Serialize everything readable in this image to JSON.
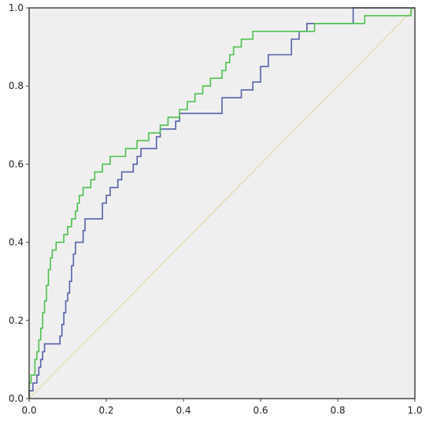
{
  "chart_data": {
    "type": "line",
    "title": "",
    "xlabel": "",
    "ylabel": "",
    "xlim": [
      0,
      1
    ],
    "ylim": [
      0,
      1
    ],
    "grid": false,
    "x_ticks": [
      "0.0",
      "0.2",
      "0.4",
      "0.6",
      "0.8",
      "1.0"
    ],
    "y_ticks": [
      "0.0",
      "0.2",
      "0.4",
      "0.6",
      "0.8",
      "1.0"
    ],
    "colors": {
      "plot_background": "#efefef",
      "frame": "#444444",
      "reference_line": "#e3d9a8",
      "series_blue": "#5560a8",
      "series_green": "#4dc14d"
    },
    "series": [
      {
        "color": "#5560a8",
        "points": [
          [
            0,
            0
          ],
          [
            0,
            0.02
          ],
          [
            0.01,
            0.02
          ],
          [
            0.01,
            0.04
          ],
          [
            0.02,
            0.04
          ],
          [
            0.02,
            0.06
          ],
          [
            0.025,
            0.06
          ],
          [
            0.025,
            0.08
          ],
          [
            0.03,
            0.08
          ],
          [
            0.03,
            0.1
          ],
          [
            0.035,
            0.1
          ],
          [
            0.035,
            0.12
          ],
          [
            0.04,
            0.12
          ],
          [
            0.04,
            0.14
          ],
          [
            0.08,
            0.14
          ],
          [
            0.08,
            0.16
          ],
          [
            0.085,
            0.16
          ],
          [
            0.085,
            0.19
          ],
          [
            0.09,
            0.19
          ],
          [
            0.09,
            0.22
          ],
          [
            0.095,
            0.22
          ],
          [
            0.095,
            0.25
          ],
          [
            0.1,
            0.25
          ],
          [
            0.1,
            0.27
          ],
          [
            0.105,
            0.27
          ],
          [
            0.105,
            0.3
          ],
          [
            0.11,
            0.3
          ],
          [
            0.11,
            0.34
          ],
          [
            0.115,
            0.34
          ],
          [
            0.115,
            0.37
          ],
          [
            0.12,
            0.37
          ],
          [
            0.12,
            0.4
          ],
          [
            0.14,
            0.4
          ],
          [
            0.14,
            0.43
          ],
          [
            0.145,
            0.43
          ],
          [
            0.145,
            0.46
          ],
          [
            0.19,
            0.46
          ],
          [
            0.19,
            0.5
          ],
          [
            0.2,
            0.5
          ],
          [
            0.2,
            0.52
          ],
          [
            0.21,
            0.52
          ],
          [
            0.21,
            0.54
          ],
          [
            0.23,
            0.54
          ],
          [
            0.23,
            0.56
          ],
          [
            0.24,
            0.56
          ],
          [
            0.24,
            0.58
          ],
          [
            0.27,
            0.58
          ],
          [
            0.27,
            0.6
          ],
          [
            0.28,
            0.6
          ],
          [
            0.28,
            0.62
          ],
          [
            0.29,
            0.62
          ],
          [
            0.29,
            0.64
          ],
          [
            0.33,
            0.64
          ],
          [
            0.33,
            0.67
          ],
          [
            0.34,
            0.67
          ],
          [
            0.34,
            0.69
          ],
          [
            0.38,
            0.69
          ],
          [
            0.38,
            0.71
          ],
          [
            0.39,
            0.71
          ],
          [
            0.39,
            0.73
          ],
          [
            0.5,
            0.73
          ],
          [
            0.5,
            0.77
          ],
          [
            0.55,
            0.77
          ],
          [
            0.55,
            0.79
          ],
          [
            0.58,
            0.79
          ],
          [
            0.58,
            0.81
          ],
          [
            0.6,
            0.81
          ],
          [
            0.6,
            0.85
          ],
          [
            0.62,
            0.85
          ],
          [
            0.62,
            0.88
          ],
          [
            0.68,
            0.88
          ],
          [
            0.68,
            0.92
          ],
          [
            0.7,
            0.92
          ],
          [
            0.7,
            0.94
          ],
          [
            0.72,
            0.94
          ],
          [
            0.72,
            0.96
          ],
          [
            0.84,
            0.96
          ],
          [
            0.84,
            1
          ],
          [
            1,
            1
          ]
        ]
      },
      {
        "color": "#4dc14d",
        "points": [
          [
            0,
            0
          ],
          [
            0,
            0.04
          ],
          [
            0.005,
            0.04
          ],
          [
            0.005,
            0.06
          ],
          [
            0.015,
            0.06
          ],
          [
            0.015,
            0.1
          ],
          [
            0.02,
            0.1
          ],
          [
            0.02,
            0.12
          ],
          [
            0.025,
            0.12
          ],
          [
            0.025,
            0.15
          ],
          [
            0.03,
            0.15
          ],
          [
            0.03,
            0.18
          ],
          [
            0.035,
            0.18
          ],
          [
            0.035,
            0.22
          ],
          [
            0.04,
            0.22
          ],
          [
            0.04,
            0.25
          ],
          [
            0.045,
            0.25
          ],
          [
            0.045,
            0.29
          ],
          [
            0.05,
            0.29
          ],
          [
            0.05,
            0.33
          ],
          [
            0.055,
            0.33
          ],
          [
            0.055,
            0.36
          ],
          [
            0.06,
            0.36
          ],
          [
            0.06,
            0.38
          ],
          [
            0.07,
            0.38
          ],
          [
            0.07,
            0.4
          ],
          [
            0.09,
            0.4
          ],
          [
            0.09,
            0.42
          ],
          [
            0.1,
            0.42
          ],
          [
            0.1,
            0.44
          ],
          [
            0.11,
            0.44
          ],
          [
            0.11,
            0.46
          ],
          [
            0.12,
            0.46
          ],
          [
            0.12,
            0.48
          ],
          [
            0.125,
            0.48
          ],
          [
            0.125,
            0.5
          ],
          [
            0.13,
            0.5
          ],
          [
            0.13,
            0.52
          ],
          [
            0.14,
            0.52
          ],
          [
            0.14,
            0.54
          ],
          [
            0.16,
            0.54
          ],
          [
            0.16,
            0.56
          ],
          [
            0.17,
            0.56
          ],
          [
            0.17,
            0.58
          ],
          [
            0.19,
            0.58
          ],
          [
            0.19,
            0.6
          ],
          [
            0.21,
            0.6
          ],
          [
            0.21,
            0.62
          ],
          [
            0.25,
            0.62
          ],
          [
            0.25,
            0.64
          ],
          [
            0.28,
            0.64
          ],
          [
            0.28,
            0.66
          ],
          [
            0.31,
            0.66
          ],
          [
            0.31,
            0.68
          ],
          [
            0.34,
            0.68
          ],
          [
            0.34,
            0.7
          ],
          [
            0.36,
            0.7
          ],
          [
            0.36,
            0.72
          ],
          [
            0.39,
            0.72
          ],
          [
            0.39,
            0.74
          ],
          [
            0.41,
            0.74
          ],
          [
            0.41,
            0.76
          ],
          [
            0.43,
            0.76
          ],
          [
            0.43,
            0.78
          ],
          [
            0.45,
            0.78
          ],
          [
            0.45,
            0.8
          ],
          [
            0.47,
            0.8
          ],
          [
            0.47,
            0.82
          ],
          [
            0.5,
            0.82
          ],
          [
            0.5,
            0.84
          ],
          [
            0.51,
            0.84
          ],
          [
            0.51,
            0.86
          ],
          [
            0.52,
            0.86
          ],
          [
            0.52,
            0.88
          ],
          [
            0.53,
            0.88
          ],
          [
            0.53,
            0.9
          ],
          [
            0.55,
            0.9
          ],
          [
            0.55,
            0.92
          ],
          [
            0.58,
            0.92
          ],
          [
            0.58,
            0.94
          ],
          [
            0.74,
            0.94
          ],
          [
            0.74,
            0.96
          ],
          [
            0.87,
            0.96
          ],
          [
            0.87,
            0.98
          ],
          [
            0.99,
            0.98
          ],
          [
            0.99,
            1
          ],
          [
            1,
            1
          ]
        ]
      }
    ]
  }
}
